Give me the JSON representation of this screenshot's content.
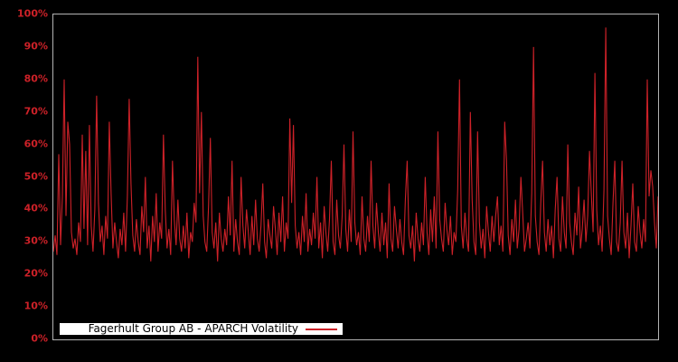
{
  "chart_data": {
    "type": "line",
    "title": "",
    "legend_label": "Fagerhult Group AB - APARCH Volatility",
    "legend_position": "lower left",
    "grid": false,
    "x_axis": {
      "label": "",
      "tick_labels": []
    },
    "y_axis": {
      "label": "",
      "unit": "%",
      "min": 0,
      "max": 100,
      "tick_step": 10,
      "tick_labels": [
        "0%",
        "10%",
        "20%",
        "30%",
        "40%",
        "50%",
        "60%",
        "70%",
        "80%",
        "90%",
        "100%"
      ]
    },
    "series": [
      {
        "name": "Fagerhult Group AB - APARCH Volatility",
        "unit": "%",
        "values": [
          27,
          32,
          26,
          57,
          29,
          44,
          80,
          38,
          67,
          60,
          33,
          28,
          31,
          26,
          36,
          30,
          63,
          34,
          58,
          29,
          66,
          35,
          27,
          40,
          75,
          42,
          30,
          35,
          26,
          38,
          31,
          67,
          45,
          28,
          36,
          30,
          25,
          34,
          29,
          39,
          27,
          44,
          74,
          48,
          32,
          27,
          37,
          30,
          26,
          41,
          33,
          50,
          28,
          35,
          24,
          38,
          30,
          45,
          27,
          36,
          31,
          63,
          40,
          28,
          34,
          26,
          55,
          37,
          29,
          43,
          31,
          27,
          35,
          28,
          39,
          25,
          33,
          30,
          42,
          36,
          87,
          45,
          70,
          38,
          30,
          27,
          41,
          62,
          33,
          28,
          36,
          24,
          39,
          31,
          27,
          34,
          29,
          44,
          32,
          55,
          27,
          37,
          30,
          26,
          50,
          35,
          28,
          40,
          33,
          26,
          38,
          29,
          43,
          31,
          27,
          35,
          48,
          30,
          25,
          37,
          32,
          28,
          41,
          34,
          26,
          39,
          30,
          44,
          27,
          36,
          31,
          68,
          42,
          66,
          35,
          28,
          33,
          26,
          38,
          30,
          45,
          27,
          34,
          29,
          39,
          31,
          50,
          28,
          36,
          25,
          41,
          33,
          27,
          37,
          55,
          30,
          26,
          43,
          32,
          28,
          38,
          60,
          34,
          27,
          40,
          30,
          64,
          36,
          29,
          33,
          26,
          44,
          31,
          27,
          38,
          30,
          55,
          35,
          28,
          42,
          33,
          27,
          39,
          29,
          36,
          25,
          48,
          31,
          27,
          41,
          34,
          28,
          37,
          30,
          26,
          43,
          55,
          32,
          28,
          35,
          24,
          39,
          31,
          27,
          36,
          29,
          50,
          33,
          26,
          40,
          30,
          44,
          28,
          64,
          37,
          31,
          27,
          42,
          34,
          29,
          38,
          26,
          33,
          30,
          46,
          80,
          35,
          28,
          39,
          31,
          27,
          70,
          43,
          30,
          26,
          64,
          36,
          28,
          34,
          25,
          41,
          33,
          27,
          38,
          30,
          38,
          44,
          29,
          35,
          27,
          67,
          55,
          32,
          26,
          37,
          30,
          43,
          28,
          34,
          50,
          39,
          27,
          31,
          36,
          28,
          45,
          90,
          38,
          30,
          26,
          42,
          55,
          33,
          27,
          37,
          29,
          35,
          25,
          40,
          50,
          31,
          27,
          44,
          33,
          28,
          60,
          36,
          30,
          26,
          39,
          32,
          47,
          28,
          34,
          43,
          30,
          38,
          58,
          45,
          33,
          82,
          40,
          29,
          35,
          27,
          46,
          96,
          38,
          31,
          26,
          42,
          55,
          30,
          27,
          36,
          55,
          33,
          28,
          39,
          25,
          35,
          48,
          30,
          27,
          41,
          33,
          28,
          37,
          30,
          80,
          44,
          52,
          47,
          36,
          28,
          44
        ]
      }
    ],
    "colors": {
      "series": "#cd2128",
      "background": "#000000",
      "axis_labels": "#cd2128",
      "plot_border": "#b3b3b3",
      "legend_background": "#ffffff",
      "legend_text": "#000000"
    }
  }
}
